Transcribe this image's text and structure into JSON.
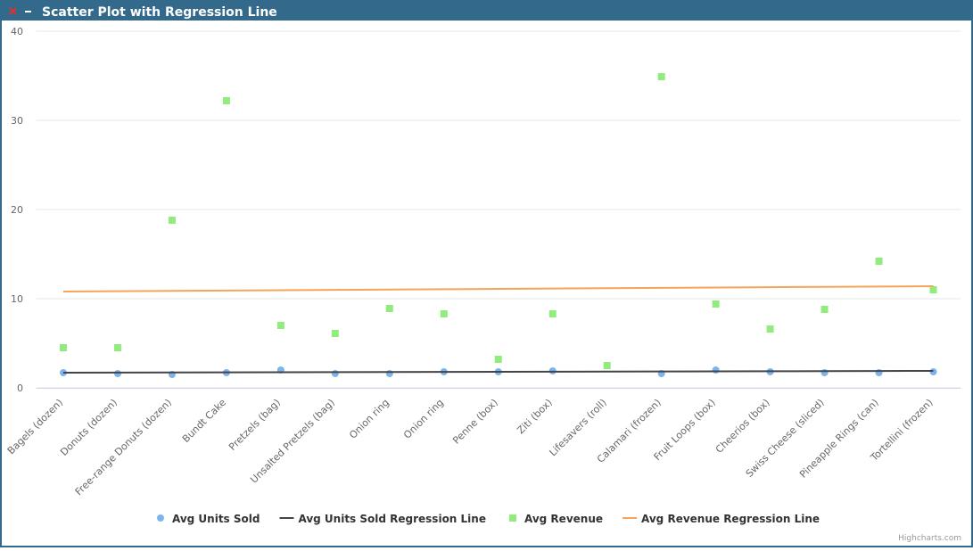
{
  "chart_data": {
    "type": "scatter",
    "title": "Scatter Plot with Regression Line",
    "credit": "Highcharts.com",
    "categories": [
      "Bagels (dozen)",
      "Donuts (dozen)",
      "Free-range Donuts (dozen)",
      "Bundt Cake",
      "Pretzels (bag)",
      "Unsalted Pretzels (bag)",
      "Onion ring",
      "Onion ring",
      "Penne (box)",
      "Ziti (box)",
      "Lifesavers (roll)",
      "Calamari (frozen)",
      "Fruit Loops (box)",
      "Cheerios (box)",
      "Swiss Cheese (sliced)",
      "Pineapple Rings (can)",
      "Tortellini (frozen)"
    ],
    "ylim": [
      0,
      40
    ],
    "yticks": [
      0,
      10,
      20,
      30,
      40
    ],
    "grid": true,
    "series": [
      {
        "name": "Avg Units Sold",
        "type": "scatter",
        "marker": "circle",
        "color": "#7cb5ec",
        "values": [
          1.7,
          1.6,
          1.5,
          1.7,
          2.0,
          1.6,
          1.6,
          1.8,
          1.8,
          1.9,
          null,
          1.6,
          2.0,
          1.8,
          1.7,
          1.7,
          1.8
        ]
      },
      {
        "name": "Avg Units Sold Regression Line",
        "type": "line",
        "color": "#434348",
        "values": [
          1.7,
          1.71,
          1.73,
          1.74,
          1.75,
          1.76,
          1.78,
          1.79,
          1.8,
          1.81,
          1.83,
          1.84,
          1.85,
          1.86,
          1.88,
          1.89,
          1.9
        ]
      },
      {
        "name": "Avg Revenue",
        "type": "scatter",
        "marker": "square",
        "color": "#90ed7d",
        "values": [
          4.5,
          4.5,
          18.8,
          32.2,
          7.0,
          6.1,
          8.9,
          8.3,
          3.2,
          8.3,
          2.5,
          34.9,
          9.4,
          6.6,
          8.8,
          14.2,
          11.0
        ]
      },
      {
        "name": "Avg Revenue Regression Line",
        "type": "line",
        "color": "#f7a35c",
        "values": [
          10.8,
          10.84,
          10.88,
          10.91,
          10.95,
          10.99,
          11.03,
          11.06,
          11.1,
          11.14,
          11.18,
          11.21,
          11.25,
          11.29,
          11.33,
          11.36,
          11.4
        ]
      }
    ]
  }
}
